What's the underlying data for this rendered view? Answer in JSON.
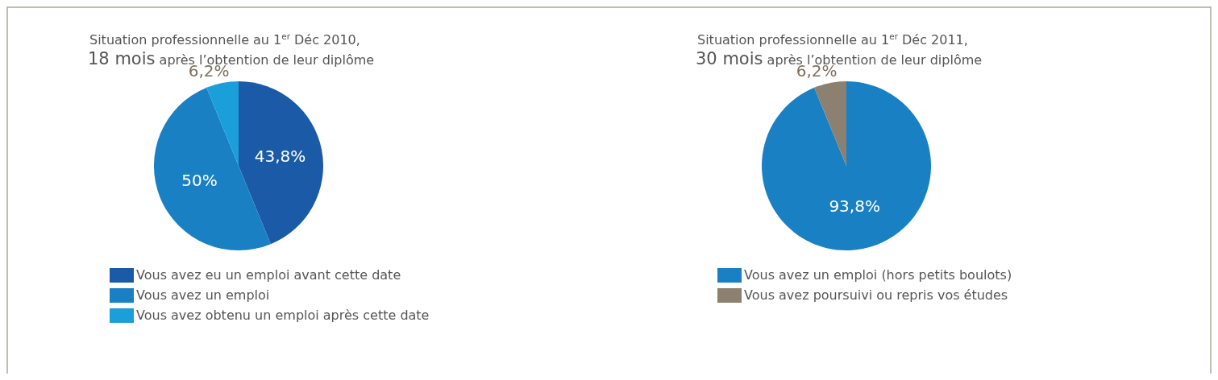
{
  "chart_data": [
    {
      "type": "pie",
      "title": "Situation professionnelle au 1$^{er}$ Déc 2010,",
      "subtitle": "18 mois après l’obtention de leur diplôme",
      "categories": [
        "Vous avez eu un emploi avant cette date",
        "Vous avez un emploi",
        "Vous avez obtenu un emploi après cette date"
      ],
      "values": [
        43.8,
        50,
        6.2
      ],
      "colors": [
        "#1a5aa6",
        "#1a80c4",
        "#1a9fdb"
      ],
      "value_labels": [
        "43,8%",
        "50%",
        "6,2%"
      ],
      "legend": "bottom"
    },
    {
      "type": "pie",
      "title": "Situation professionnelle au 1$^{er}$ Déc 2011,",
      "subtitle": "30 mois après l’obtention de leur diplôme",
      "categories": [
        "Vous avez un emploi (hors petits boulots)",
        "Vous avez poursuivi ou repris vos études"
      ],
      "values": [
        93.8,
        6.2
      ],
      "colors": [
        "#1a80c4",
        "#8c8070"
      ],
      "value_labels": [
        "93,8%",
        "6,2%"
      ],
      "legend": "bottom"
    }
  ]
}
